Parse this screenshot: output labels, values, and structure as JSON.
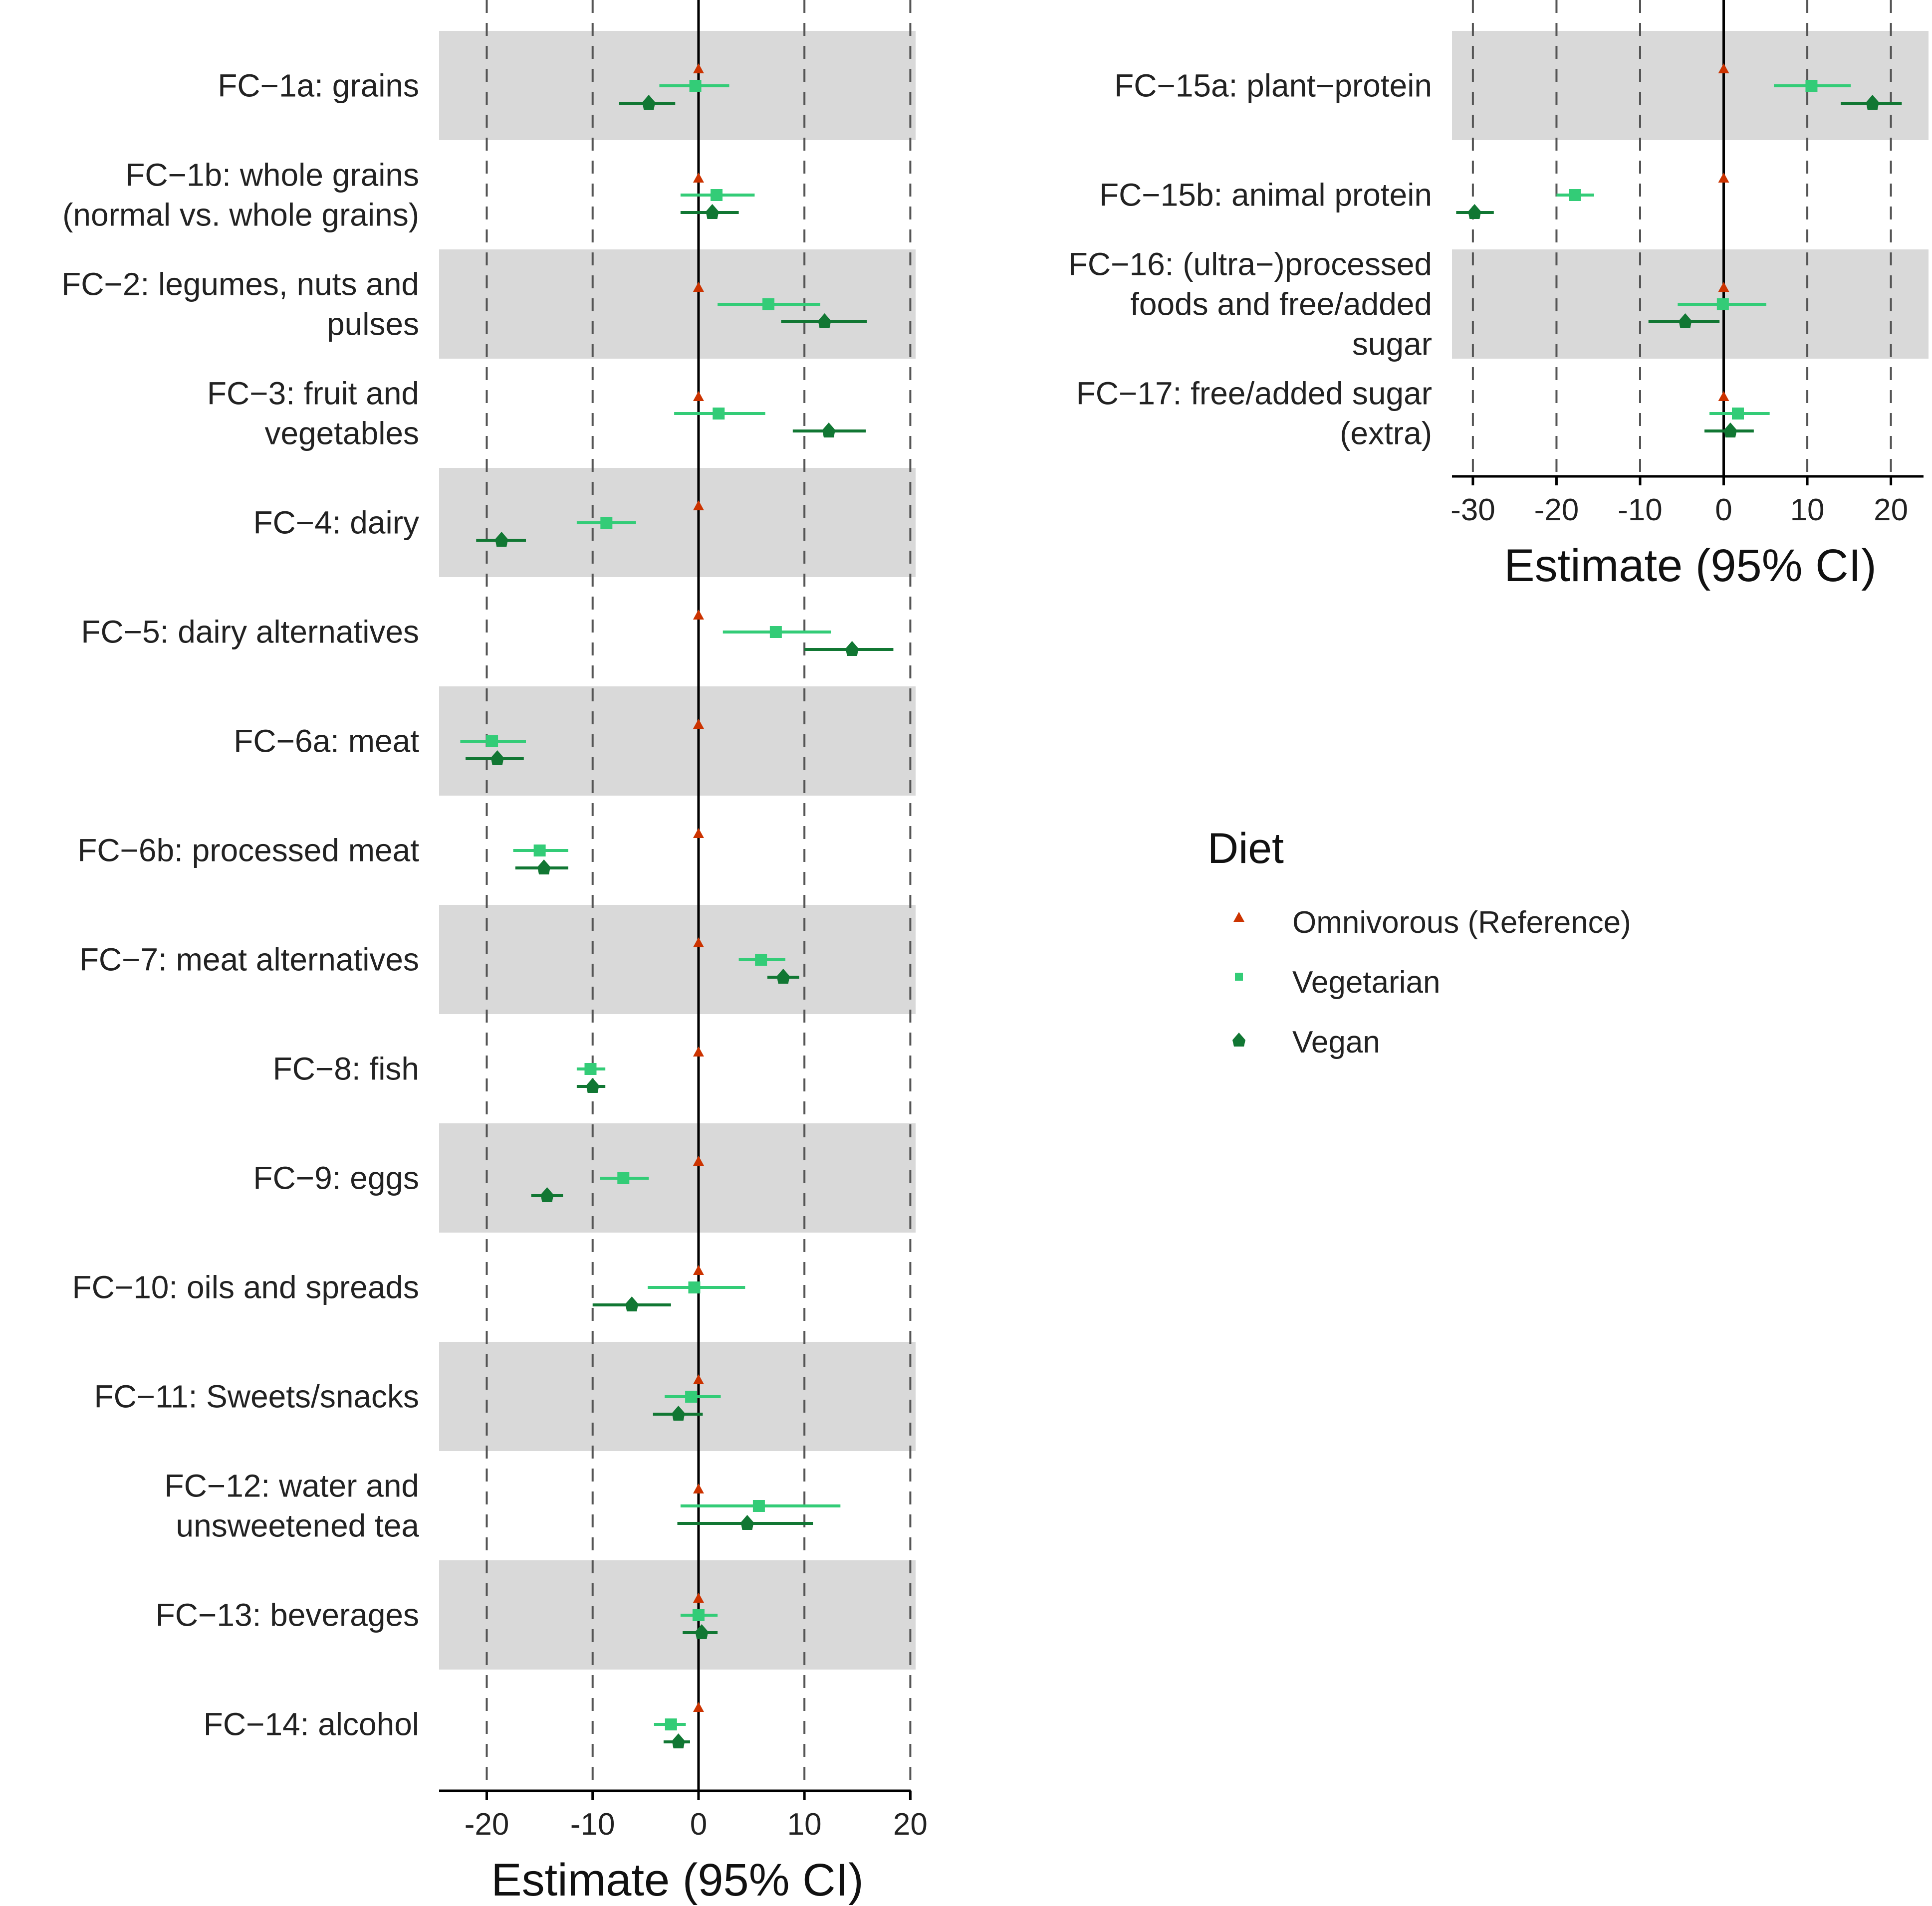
{
  "colors": {
    "omnivorous": "#cc3300",
    "vegetarian": "#33cc77",
    "vegan": "#117733",
    "band": "#d9d9d9",
    "grid": "#555555",
    "axis": "#000000"
  },
  "legend": {
    "title": "Diet",
    "items": [
      "Omnivorous (Reference)",
      "Vegetarian",
      "Vegan"
    ]
  },
  "chart_data": [
    {
      "type": "forest",
      "xlabel": "Estimate (95% CI)",
      "xlim": [
        -24.5,
        20.5
      ],
      "xticks": [
        -20,
        -10,
        0,
        10,
        20
      ],
      "xtick_labels": [
        "-20",
        "-10",
        "0",
        "10",
        "20"
      ],
      "reference_line": 0,
      "rows": [
        {
          "label": [
            "FC−1a: grains"
          ],
          "shaded": true,
          "vegetarian": [
            -0.3,
            -3.7,
            2.9
          ],
          "vegan": [
            -4.7,
            -7.5,
            -2.2
          ]
        },
        {
          "label": [
            "FC−1b: whole grains",
            "(normal vs. whole grains)"
          ],
          "shaded": false,
          "vegetarian": [
            1.7,
            -1.7,
            5.3
          ],
          "vegan": [
            1.3,
            -1.7,
            3.8
          ]
        },
        {
          "label": [
            "FC−2: legumes, nuts and",
            "pulses"
          ],
          "shaded": true,
          "vegetarian": [
            6.6,
            1.8,
            11.5
          ],
          "vegan": [
            11.9,
            7.8,
            15.9
          ]
        },
        {
          "label": [
            "FC−3: fruit and",
            "vegetables"
          ],
          "shaded": false,
          "vegetarian": [
            1.9,
            -2.3,
            6.3
          ],
          "vegan": [
            12.3,
            8.9,
            15.8
          ]
        },
        {
          "label": [
            "FC−4: dairy"
          ],
          "shaded": true,
          "vegetarian": [
            -8.7,
            -11.5,
            -5.9
          ],
          "vegan": [
            -18.6,
            -21,
            -16.3
          ]
        },
        {
          "label": [
            "FC−5: dairy alternatives"
          ],
          "shaded": false,
          "vegetarian": [
            7.3,
            2.3,
            12.5
          ],
          "vegan": [
            14.5,
            10,
            18.4
          ]
        },
        {
          "label": [
            "FC−6a: meat"
          ],
          "shaded": true,
          "vegetarian": [
            -19.5,
            -22.5,
            -16.3
          ],
          "vegan": [
            -19,
            -22,
            -16.5
          ]
        },
        {
          "label": [
            "FC−6b: processed meat"
          ],
          "shaded": false,
          "vegetarian": [
            -15,
            -17.5,
            -12.3
          ],
          "vegan": [
            -14.6,
            -17.3,
            -12.3
          ]
        },
        {
          "label": [
            "FC−7: meat alternatives"
          ],
          "shaded": true,
          "vegetarian": [
            5.9,
            3.8,
            8.2
          ],
          "vegan": [
            8,
            6.5,
            9.5
          ]
        },
        {
          "label": [
            "FC−8: fish"
          ],
          "shaded": false,
          "vegetarian": [
            -10.2,
            -11.5,
            -8.8
          ],
          "vegan": [
            -10,
            -11.5,
            -8.8
          ]
        },
        {
          "label": [
            "FC−9: eggs"
          ],
          "shaded": true,
          "vegetarian": [
            -7.1,
            -9.3,
            -4.7
          ],
          "vegan": [
            -14.3,
            -15.8,
            -12.8
          ]
        },
        {
          "label": [
            "FC−10: oils and spreads"
          ],
          "shaded": false,
          "vegetarian": [
            -0.4,
            -4.8,
            4.4
          ],
          "vegan": [
            -6.3,
            -10,
            -2.6
          ]
        },
        {
          "label": [
            "FC−11: Sweets/snacks"
          ],
          "shaded": true,
          "vegetarian": [
            -0.7,
            -3.2,
            2.1
          ],
          "vegan": [
            -1.9,
            -4.3,
            0.4
          ]
        },
        {
          "label": [
            "FC−12: water and",
            "unsweetened tea"
          ],
          "shaded": false,
          "vegetarian": [
            5.7,
            -1.7,
            13.4
          ],
          "vegan": [
            4.6,
            -2,
            10.8
          ]
        },
        {
          "label": [
            "FC−13: beverages"
          ],
          "shaded": true,
          "vegetarian": [
            0,
            -1.7,
            1.8
          ],
          "vegan": [
            0.3,
            -1.5,
            1.8
          ]
        },
        {
          "label": [
            "FC−14: alcohol"
          ],
          "shaded": false,
          "vegetarian": [
            -2.6,
            -4.2,
            -1.2
          ],
          "vegan": [
            -1.9,
            -3.3,
            -0.8
          ]
        }
      ]
    },
    {
      "type": "forest",
      "xlabel": "Estimate (95% CI)",
      "xlim": [
        -32.5,
        24.5
      ],
      "xticks": [
        -30,
        -20,
        -10,
        0,
        10,
        20
      ],
      "xtick_labels": [
        "-30",
        "-20",
        "-10",
        "0",
        "10",
        "20"
      ],
      "reference_line": 0,
      "rows": [
        {
          "label": [
            "FC−15a: plant−protein"
          ],
          "shaded": true,
          "vegetarian": [
            10.5,
            6,
            15.2
          ],
          "vegan": [
            17.8,
            14,
            21.3
          ]
        },
        {
          "label": [
            "FC−15b: animal protein"
          ],
          "shaded": false,
          "vegetarian": [
            -17.8,
            -20,
            -15.5
          ],
          "vegan": [
            -29.8,
            -32,
            -27.5
          ]
        },
        {
          "label": [
            "FC−16: (ultra−)processed",
            "foods and free/added",
            "sugar"
          ],
          "shaded": true,
          "vegetarian": [
            -0.1,
            -5.5,
            5.1
          ],
          "vegan": [
            -4.6,
            -9,
            -0.5
          ]
        },
        {
          "label": [
            "FC−17: free/added sugar",
            "(extra)"
          ],
          "shaded": false,
          "vegetarian": [
            1.7,
            -1.7,
            5.5
          ],
          "vegan": [
            0.8,
            -2.3,
            3.6
          ]
        }
      ]
    }
  ]
}
